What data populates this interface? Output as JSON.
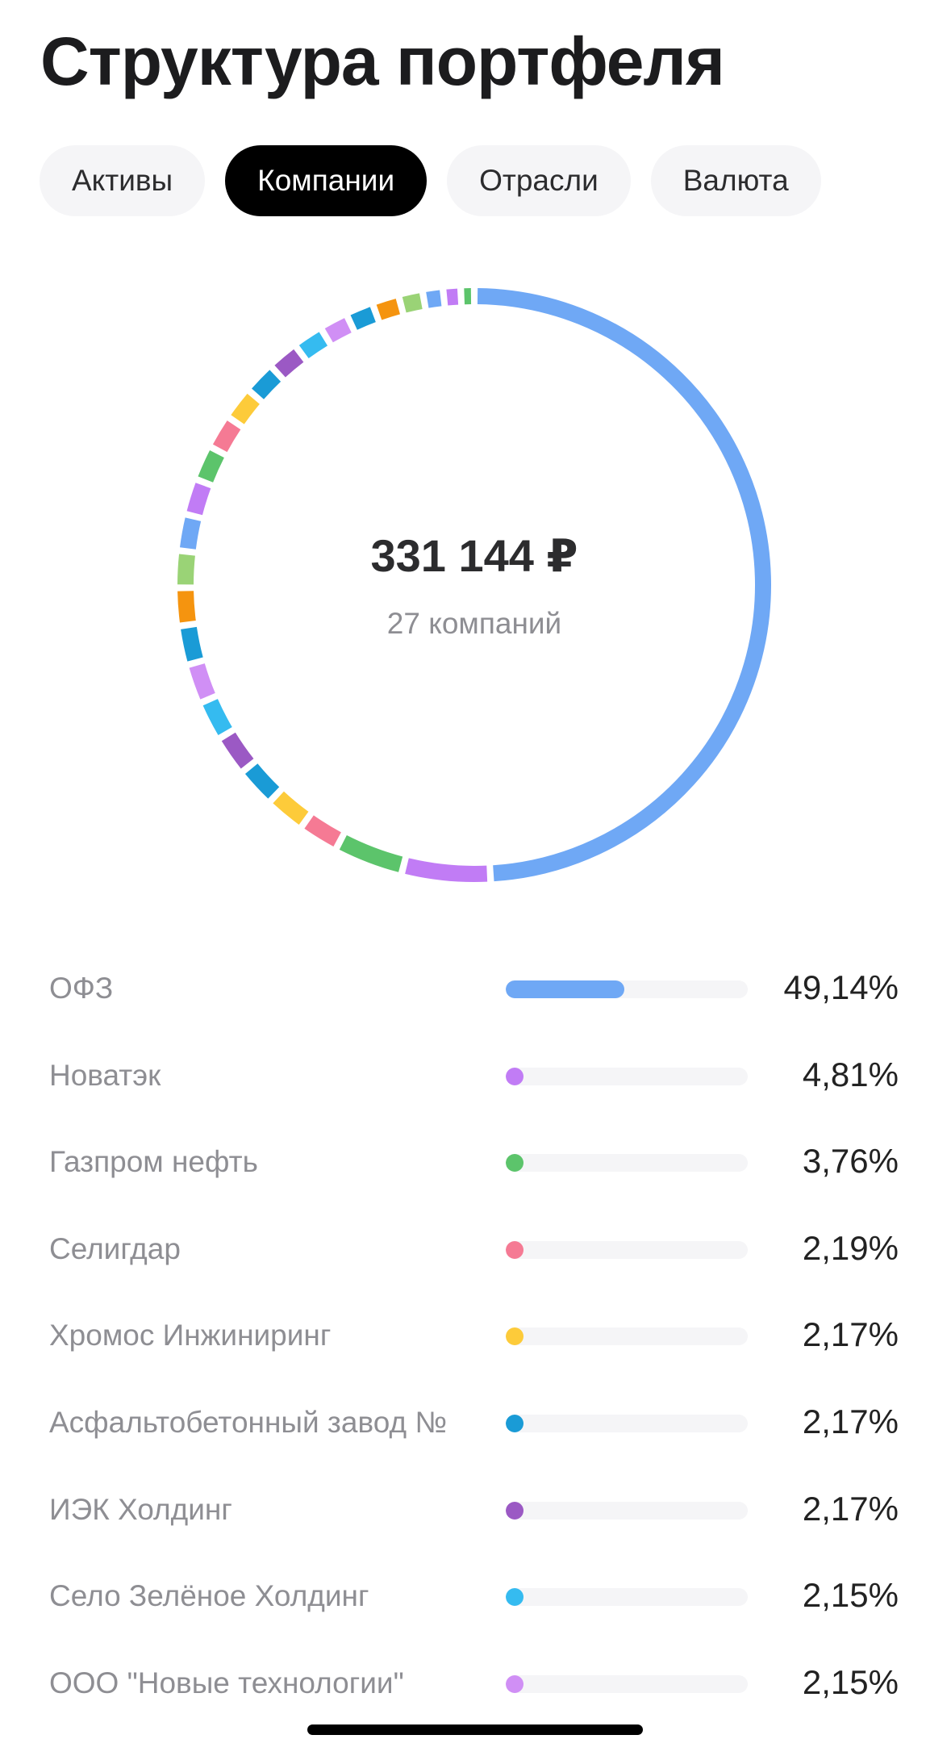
{
  "header": {
    "title": "Структура портфеля"
  },
  "tabs": [
    "Активы",
    "Компании",
    "Отрасли",
    "Валюта"
  ],
  "active_tab": 1,
  "summary": {
    "total": "331 144 ₽",
    "count": "27 компаний"
  },
  "rows": [
    {
      "name": "ОФЗ",
      "value": 49.14,
      "value_label": "49,14%",
      "color": "#6fa8f5"
    },
    {
      "name": "Новатэк",
      "value": 4.81,
      "value_label": "4,81%",
      "color": "#c17cf5"
    },
    {
      "name": "Газпром нефть",
      "value": 3.76,
      "value_label": "3,76%",
      "color": "#5cc46b"
    },
    {
      "name": "Селигдар",
      "value": 2.19,
      "value_label": "2,19%",
      "color": "#f57a94"
    },
    {
      "name": "Хромос Инжиниринг",
      "value": 2.17,
      "value_label": "2,17%",
      "color": "#fdcb3a"
    },
    {
      "name": "Асфальтобетонный завод №",
      "value": 2.17,
      "value_label": "2,17%",
      "color": "#1a9bd6"
    },
    {
      "name": "ИЭК Холдинг",
      "value": 2.17,
      "value_label": "2,17%",
      "color": "#9b59c4"
    },
    {
      "name": "Село Зелёное Холдинг",
      "value": 2.15,
      "value_label": "2,15%",
      "color": "#35bbf0"
    },
    {
      "name": "ООО \"Новые технологии\"",
      "value": 2.15,
      "value_label": "2,15%",
      "color": "#d08ff5"
    }
  ],
  "other_segments": [
    {
      "value": 2.12,
      "color": "#1a9bd6"
    },
    {
      "value": 2.05,
      "color": "#f5940f"
    },
    {
      "value": 2.0,
      "color": "#9ad376"
    },
    {
      "value": 1.98,
      "color": "#6fa8f5"
    },
    {
      "value": 1.95,
      "color": "#c17cf5"
    },
    {
      "value": 1.9,
      "color": "#5cc46b"
    },
    {
      "value": 1.85,
      "color": "#f57a94"
    },
    {
      "value": 1.8,
      "color": "#fdcb3a"
    },
    {
      "value": 1.75,
      "color": "#1a9bd6"
    },
    {
      "value": 1.7,
      "color": "#9b59c4"
    },
    {
      "value": 1.65,
      "color": "#35bbf0"
    },
    {
      "value": 1.55,
      "color": "#d08ff5"
    },
    {
      "value": 1.5,
      "color": "#1a9bd6"
    },
    {
      "value": 1.45,
      "color": "#f5940f"
    },
    {
      "value": 1.3,
      "color": "#9ad376"
    },
    {
      "value": 1.1,
      "color": "#6fa8f5"
    },
    {
      "value": 0.95,
      "color": "#c17cf5"
    },
    {
      "value": 0.73,
      "color": "#5cc46b"
    }
  ]
}
